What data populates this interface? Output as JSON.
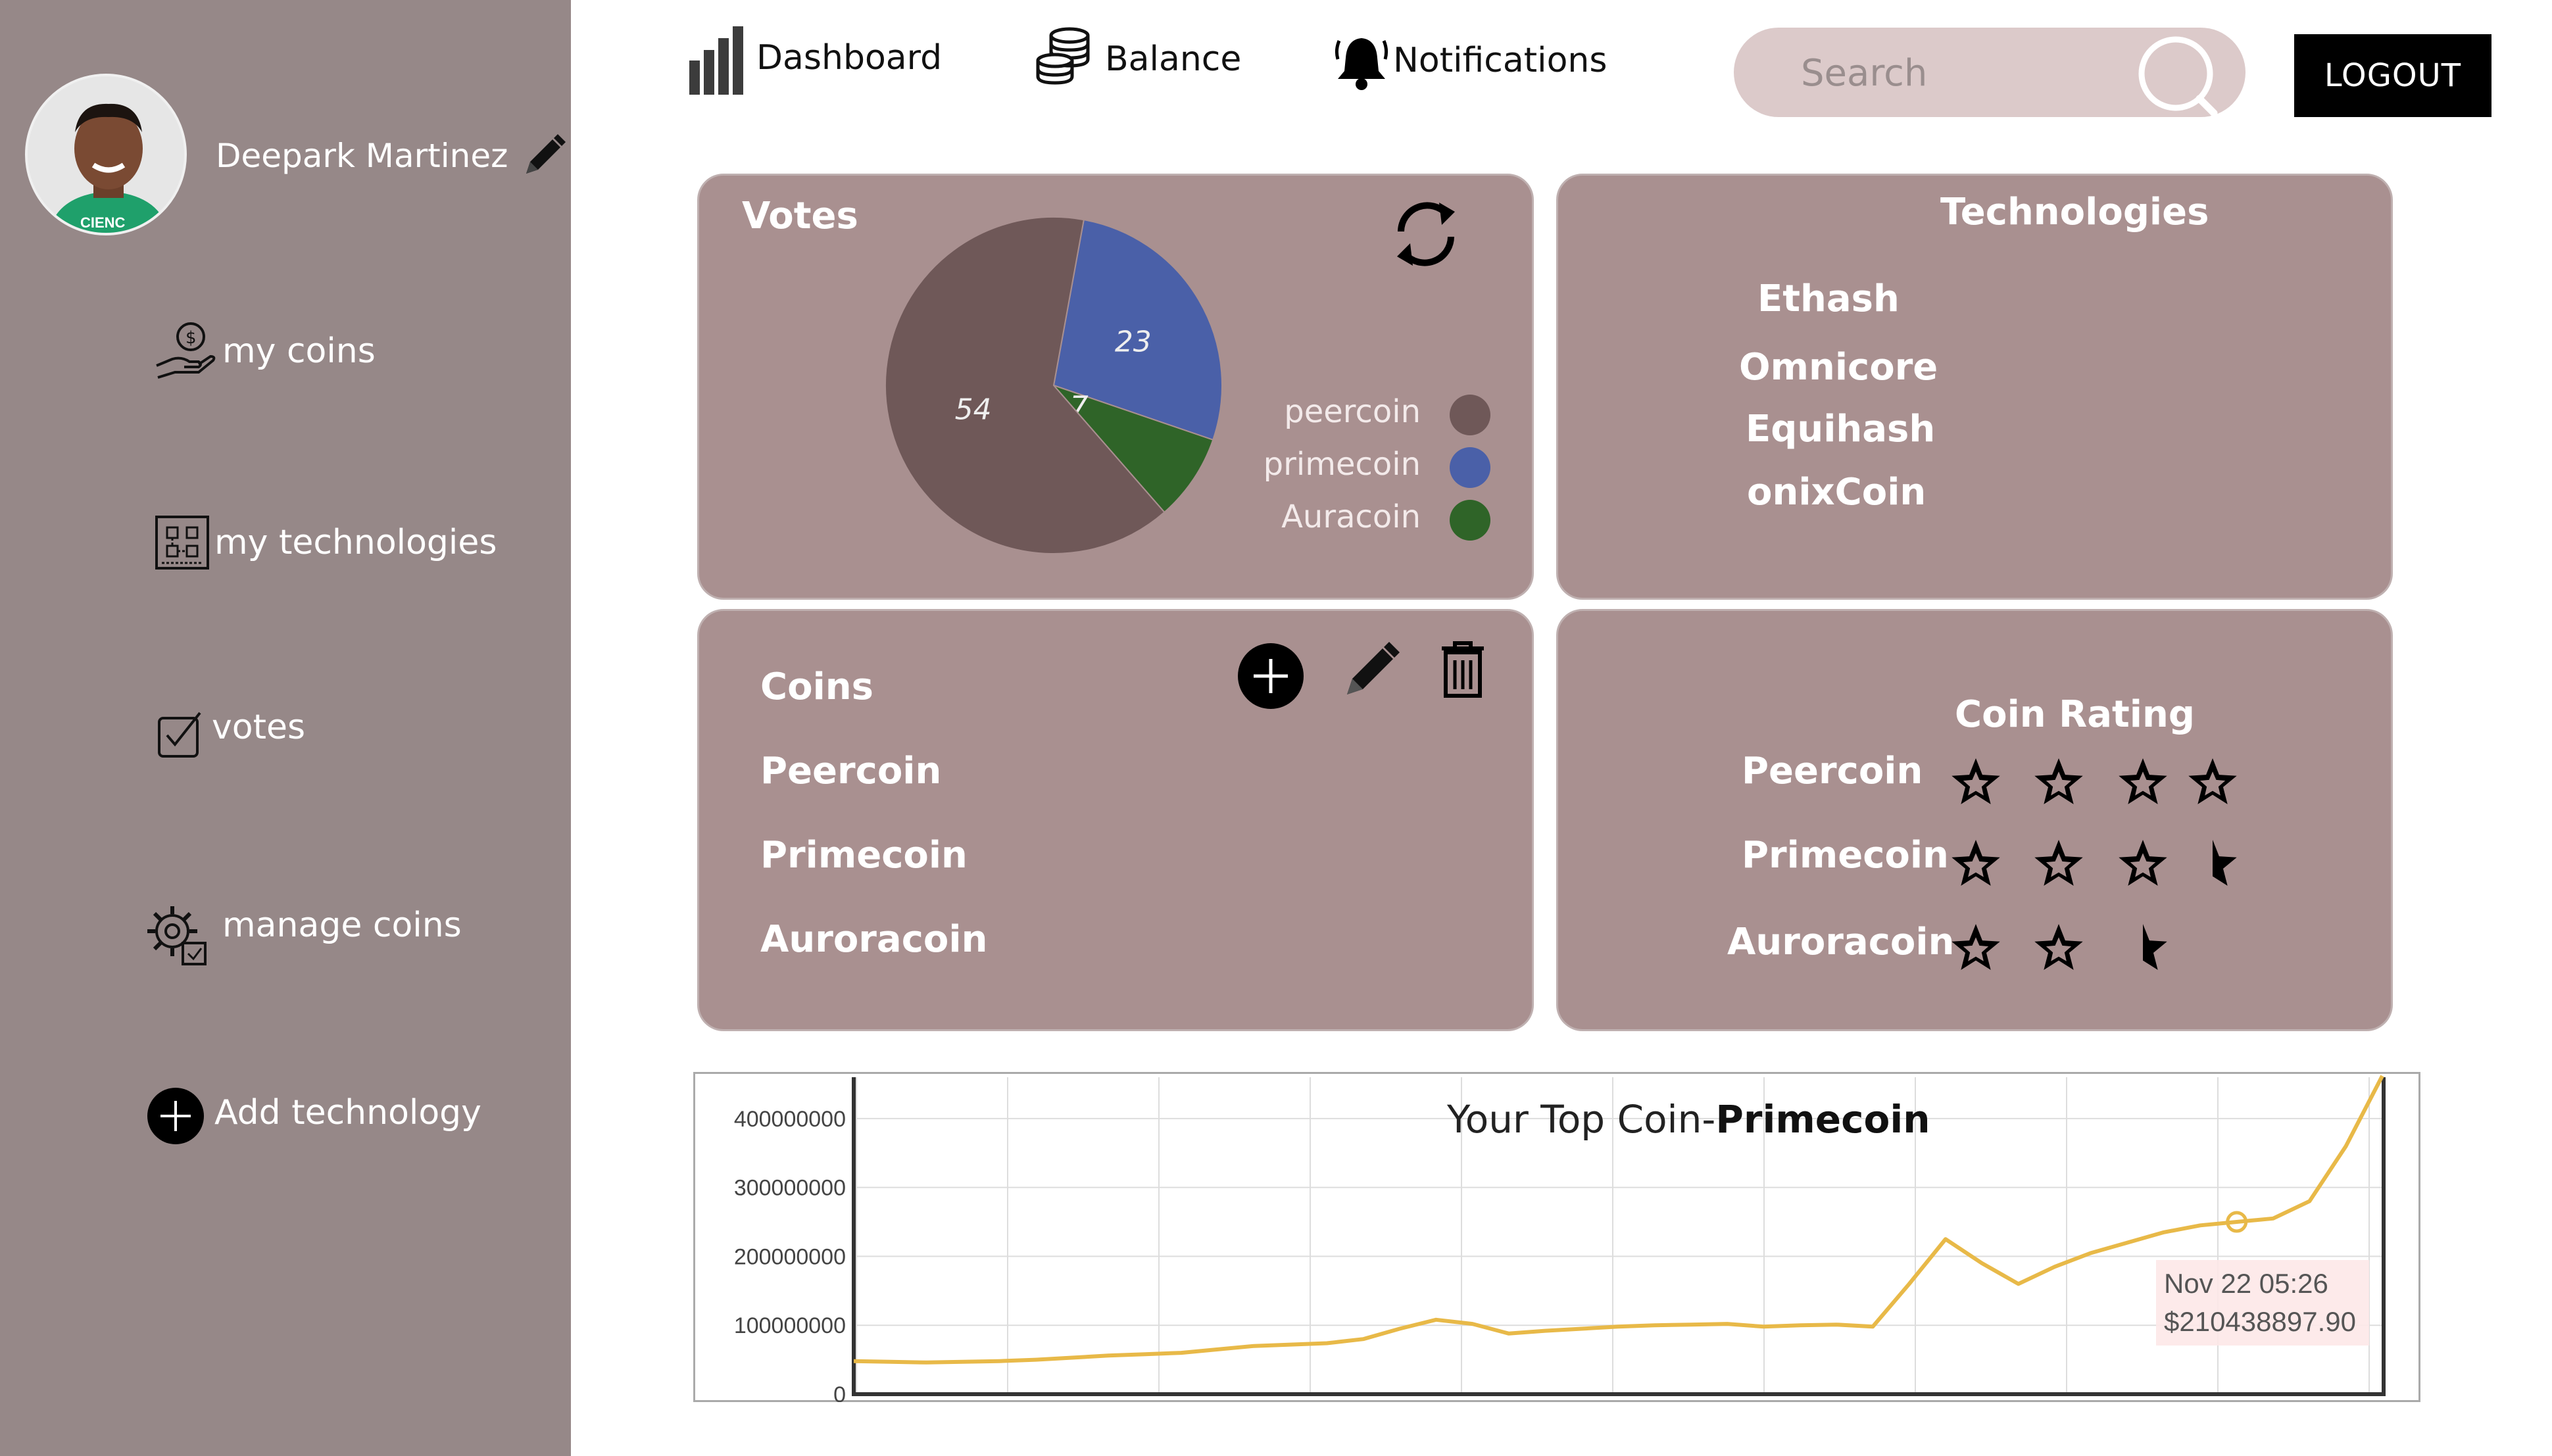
{
  "user": {
    "name": "Deepark Martinez"
  },
  "sidebar": {
    "items": [
      {
        "label": "my coins"
      },
      {
        "label": "my technologies"
      },
      {
        "label": "votes"
      },
      {
        "label": "manage coins"
      },
      {
        "label": "Add  technology"
      }
    ]
  },
  "topbar": {
    "dashboard": "Dashboard",
    "balance": "Balance",
    "notifications": "Notifications",
    "search_placeholder": "Search",
    "logout": "LOGOUT"
  },
  "votes": {
    "title": "Votes",
    "legend": [
      {
        "label": "peercoin",
        "color": "#6f5858"
      },
      {
        "label": "primecoin",
        "color": "#4a60a8"
      },
      {
        "label": "Auracoin",
        "color": "#2f6428"
      }
    ]
  },
  "technologies": {
    "title": "Technologies",
    "items": [
      "Ethash",
      "Omnicore",
      "Equihash",
      "onixCoin"
    ]
  },
  "coins": {
    "title": "Coins",
    "items": [
      "Peercoin",
      "Primecoin",
      "Auroracoin"
    ]
  },
  "rating": {
    "title": "Coin Rating",
    "rows": [
      {
        "name": "Peercoin",
        "stars": 4
      },
      {
        "name": "Primecoin",
        "stars": 3.5
      },
      {
        "name": "Auroracoin",
        "stars": 2.5
      }
    ]
  },
  "colors": {
    "sidebar": "#968888",
    "card": "#a99090",
    "line": "#e8b948",
    "tooltip_bg": "#fde8e8"
  },
  "chart_data": [
    {
      "type": "pie",
      "slices": [
        {
          "label": "peercoin",
          "value": 54,
          "color": "#6f5858"
        },
        {
          "label": "primecoin",
          "value": 23,
          "color": "#4a60a8"
        },
        {
          "label": "Auracoin",
          "value": 7,
          "color": "#2f6428"
        }
      ]
    },
    {
      "type": "line",
      "title_prefix": "Your Top Coin-",
      "title_bold": "Primecoin",
      "ylim": [
        0,
        460000000
      ],
      "yticks": [
        "0",
        "100000000",
        "200000000",
        "300000000",
        "400000000"
      ],
      "grid": true,
      "tooltip": {
        "date": "Nov 22 05:26",
        "value": "$210438897.90"
      },
      "values": [
        48000000,
        47000000,
        46000000,
        47000000,
        48000000,
        50000000,
        53000000,
        56000000,
        58000000,
        60000000,
        65000000,
        70000000,
        72000000,
        74000000,
        80000000,
        95000000,
        108000000,
        102000000,
        88000000,
        92000000,
        95000000,
        98000000,
        100000000,
        101000000,
        102000000,
        98000000,
        100000000,
        101000000,
        98000000,
        160000000,
        225000000,
        190000000,
        160000000,
        185000000,
        205000000,
        220000000,
        235000000,
        245000000,
        250000000,
        255000000,
        280000000,
        360000000,
        470000000
      ]
    }
  ]
}
